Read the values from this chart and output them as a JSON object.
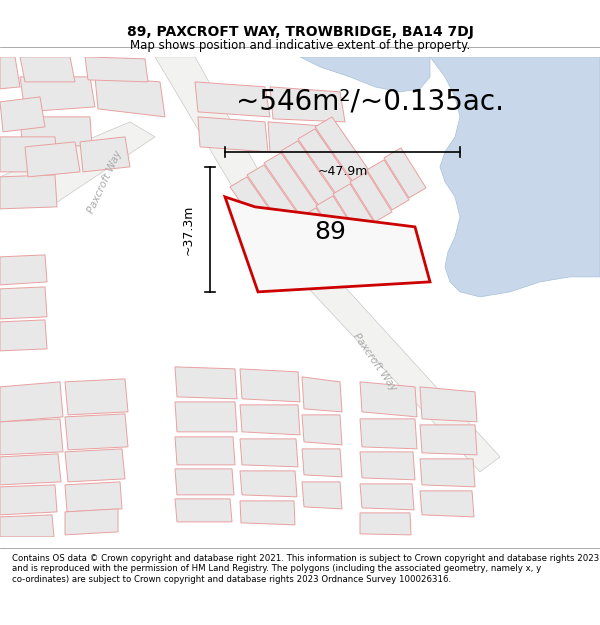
{
  "title": "89, PAXCROFT WAY, TROWBRIDGE, BA14 7DJ",
  "subtitle": "Map shows position and indicative extent of the property.",
  "area_text": "~546m²/~0.135ac.",
  "label_89": "89",
  "dim_width": "~47.9m",
  "dim_height": "~37.3m",
  "road_label1": "Paxcroft Way",
  "road_label2": "Paxcroft Way",
  "footer": "Contains OS data © Crown copyright and database right 2021. This information is subject to Crown copyright and database rights 2023 and is reproduced with the permission of HM Land Registry. The polygons (including the associated geometry, namely x, y co-ordinates) are subject to Crown copyright and database rights 2023 Ordnance Survey 100026316.",
  "bg_color": "#ffffff",
  "block_fill": "#e8e8e8",
  "block_edge": "#e8a0a0",
  "road_fill": "#f0f0f0",
  "road_edge": "#c8c8c8",
  "water_fill": "#c8d8ea",
  "water_edge": "#a8c0d8",
  "plot_color": "#cc0000",
  "plot_fill": "#f5f5f5",
  "title_fontsize": 10,
  "subtitle_fontsize": 8.5,
  "area_fontsize": 20,
  "footer_fontsize": 6.2,
  "dim_fontsize": 9,
  "label_fontsize": 18
}
